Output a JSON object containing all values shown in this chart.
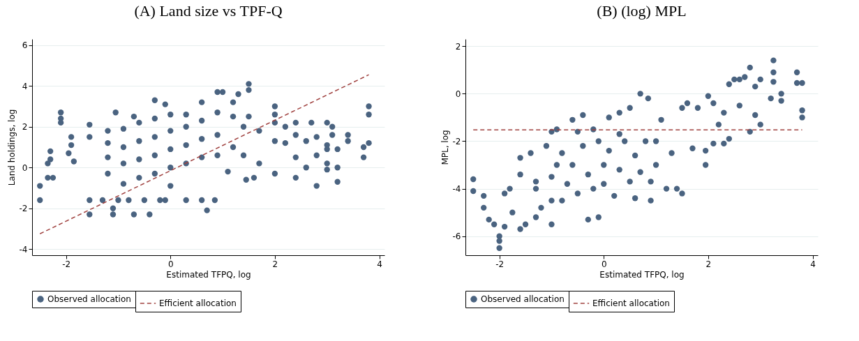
{
  "chart_data": [
    {
      "type": "scatter",
      "title": "(A) Land size vs TPF-Q",
      "xlabel": "Estimated TFPQ, log",
      "ylabel": "Land holdings, log",
      "xlim": [
        -2.65,
        4.1
      ],
      "xticks": [
        -2,
        0,
        2,
        4
      ],
      "ylim": [
        -4.3,
        6.3
      ],
      "yticks": [
        -4,
        -2,
        0,
        2,
        4,
        6
      ],
      "grid": "y",
      "legend": "bottom",
      "series": [
        {
          "name": "Observed allocation",
          "color": "#4a6380",
          "marker": "circle",
          "x": [
            -2.5,
            -2.5,
            -2.1,
            -2.1,
            -2.1,
            -1.9,
            -1.9,
            -2.3,
            -2.3,
            -2.35,
            -2.35,
            -2.25,
            -1.95,
            -1.85,
            -1.55,
            -1.55,
            -1.55,
            -1.55,
            -1.3,
            -1.1,
            -1.1,
            -1.05,
            -0.7,
            -0.4,
            -0.7,
            -0.3,
            -0.1,
            0.7,
            0.85,
            0.6,
            0.3,
            1.5,
            1.5,
            1.3,
            1.2,
            1.0,
            0.9,
            0.6,
            1.5,
            1.4,
            1.4,
            1.45,
            1.6,
            1.1,
            1.7,
            1.7,
            2.0,
            2.0,
            2.0,
            2.0,
            2.0,
            2.2,
            2.2,
            2.4,
            2.4,
            2.4,
            2.4,
            2.6,
            2.7,
            2.8,
            2.8,
            2.8,
            3.0,
            3.0,
            3.1,
            3.1,
            3.0,
            3.0,
            3.2,
            3.2,
            3.2,
            3.4,
            3.4,
            3.7,
            3.7,
            3.8,
            3.8,
            3.8,
            3.0,
            2.6,
            -1.2,
            -1.2,
            -1.2,
            -1.2,
            -0.9,
            -0.9,
            -0.9,
            -0.9,
            -0.6,
            -0.6,
            -0.6,
            -0.6,
            -0.3,
            -0.3,
            -0.3,
            -0.3,
            0,
            0,
            0,
            0,
            0.3,
            0.3,
            0.3,
            0.3,
            0.6,
            0.6,
            0.6,
            0.9,
            0.9,
            0.9,
            1.2,
            1.2,
            -1.0,
            -0.8,
            -0.5,
            -0.2,
            0,
            -0.1
          ],
          "values": [
            -0.9,
            -1.6,
            2.7,
            2.4,
            2.2,
            1.5,
            1.1,
            0.8,
            0.4,
            0.2,
            -0.5,
            -0.5,
            0.7,
            0.3,
            1.5,
            2.1,
            -1.6,
            -2.3,
            -1.6,
            -2.0,
            -2.3,
            2.7,
            2.5,
            -2.3,
            -2.3,
            3.3,
            3.1,
            -2.1,
            -1.6,
            -1.6,
            -1.6,
            4.1,
            3.8,
            3.6,
            3.2,
            3.7,
            3.7,
            3.2,
            2.5,
            2.0,
            0.6,
            -0.6,
            -0.5,
            -0.2,
            1.8,
            0.2,
            3.0,
            2.6,
            2.2,
            1.3,
            -0.3,
            2.0,
            1.2,
            2.2,
            1.6,
            0.5,
            -0.5,
            1.3,
            2.2,
            1.5,
            -0.9,
            0.6,
            1.1,
            2.2,
            2.0,
            1.6,
            0.9,
            -0.1,
            0.9,
            0.0,
            -0.7,
            1.6,
            1.3,
            1.0,
            0.5,
            3.0,
            2.6,
            1.2,
            0.2,
            0.0,
            -0.3,
            0.5,
            1.2,
            1.8,
            -0.8,
            0.2,
            1.0,
            1.9,
            -0.5,
            0.4,
            1.3,
            2.2,
            -0.3,
            0.6,
            1.5,
            2.4,
            0,
            0.9,
            1.8,
            2.6,
            0.2,
            1.1,
            2.0,
            2.6,
            0.5,
            1.4,
            2.3,
            0.6,
            1.6,
            2.7,
            1.0,
            2.5,
            -1.6,
            -1.6,
            -1.6,
            -1.6,
            -0.9,
            -1.6
          ]
        },
        {
          "name": "Efficient allocation",
          "type": "line",
          "color": "#a0413f",
          "line_style": "dashed",
          "marker": "none",
          "x": [
            -2.5,
            3.8
          ],
          "values": [
            -3.25,
            4.55
          ]
        }
      ]
    },
    {
      "type": "scatter",
      "title": "(B) (log) MPL",
      "xlabel": "Estimated TFPQ, log",
      "ylabel": "MPL, log",
      "xlim": [
        -2.65,
        4.1
      ],
      "xticks": [
        -2,
        0,
        2,
        4
      ],
      "ylim": [
        -6.8,
        2.3
      ],
      "yticks": [
        -6,
        -4,
        -2,
        0,
        2
      ],
      "grid": "y",
      "legend": "bottom",
      "series": [
        {
          "name": "Observed allocation",
          "color": "#4a6380",
          "marker": "circle",
          "x": [
            -2.5,
            -2.5,
            -2.3,
            -2.3,
            -2.2,
            -2.1,
            -2.0,
            -2.0,
            -2.0,
            -1.9,
            -1.9,
            -1.8,
            -1.75,
            -1.6,
            -1.6,
            -1.6,
            -1.5,
            -1.4,
            -1.3,
            -1.3,
            -1.2,
            -1.1,
            -1.0,
            -1.0,
            -0.9,
            -0.9,
            -0.8,
            -0.6,
            -0.4,
            -0.3,
            -0.1,
            0.1,
            0.3,
            0.5,
            0.7,
            0.85,
            0.6,
            0.9,
            1.1,
            1.2,
            1.4,
            1.5,
            1.5,
            1.6,
            1.7,
            1.8,
            2.0,
            1.95,
            1.95,
            2.1,
            2.1,
            2.2,
            2.3,
            2.4,
            2.4,
            2.5,
            2.6,
            2.7,
            2.8,
            2.8,
            2.9,
            3.0,
            3.0,
            3.2,
            3.25,
            3.25,
            3.25,
            3.4,
            3.4,
            3.7,
            3.7,
            3.8,
            3.8,
            3.8,
            2.6,
            2.9,
            2.3,
            1.3,
            1.0,
            1.0,
            -1.3,
            -1.0,
            -1.0,
            -0.8,
            -0.7,
            -0.6,
            -0.5,
            -0.4,
            -0.3,
            -0.2,
            -0.1,
            0,
            0,
            0.1,
            0.2,
            0.3,
            0.4,
            0.5,
            0.6,
            0.7,
            0.8,
            0.9,
            -0.2,
            -0.5,
            0.3
          ],
          "values": [
            -3.6,
            -4.1,
            -4.3,
            -4.8,
            -5.3,
            -5.5,
            -6.0,
            -6.2,
            -6.5,
            -4.2,
            -5.6,
            -4.0,
            -5.0,
            -2.7,
            -3.4,
            -5.7,
            -5.5,
            -2.5,
            -3.7,
            -5.2,
            -4.8,
            -2.2,
            -1.6,
            -5.5,
            -1.5,
            -3.0,
            -4.5,
            -1.1,
            -0.9,
            -5.3,
            -5.2,
            -1.0,
            -0.8,
            -0.6,
            0.0,
            -0.2,
            -4.4,
            -4.5,
            -1.1,
            -4.0,
            -4.0,
            -4.2,
            -0.6,
            -0.4,
            -2.3,
            -0.6,
            -0.1,
            -3.0,
            -2.4,
            -0.4,
            -2.1,
            -1.3,
            -2.1,
            0.4,
            -1.9,
            0.6,
            0.6,
            0.7,
            1.1,
            -1.6,
            0.3,
            0.6,
            -1.3,
            -0.2,
            1.4,
            0.9,
            0.5,
            -0.3,
            0.0,
            0.9,
            0.45,
            0.45,
            -0.7,
            -1.0,
            -0.5,
            -0.9,
            -0.8,
            -2.5,
            -2.0,
            -3.0,
            -4.0,
            -4.5,
            -3.5,
            -2.5,
            -3.8,
            -3.0,
            -4.2,
            -2.2,
            -3.4,
            -4.0,
            -2.0,
            -3.0,
            -3.8,
            -2.4,
            -4.3,
            -3.2,
            -2.0,
            -3.7,
            -2.6,
            -3.3,
            -2.0,
            -3.7,
            -1.5,
            -1.6,
            -1.7
          ]
        },
        {
          "name": "Efficient allocation",
          "type": "line",
          "color": "#a0413f",
          "line_style": "dashed",
          "marker": "none",
          "x": [
            -2.5,
            3.8
          ],
          "values": [
            -1.52,
            -1.52
          ]
        }
      ]
    }
  ]
}
